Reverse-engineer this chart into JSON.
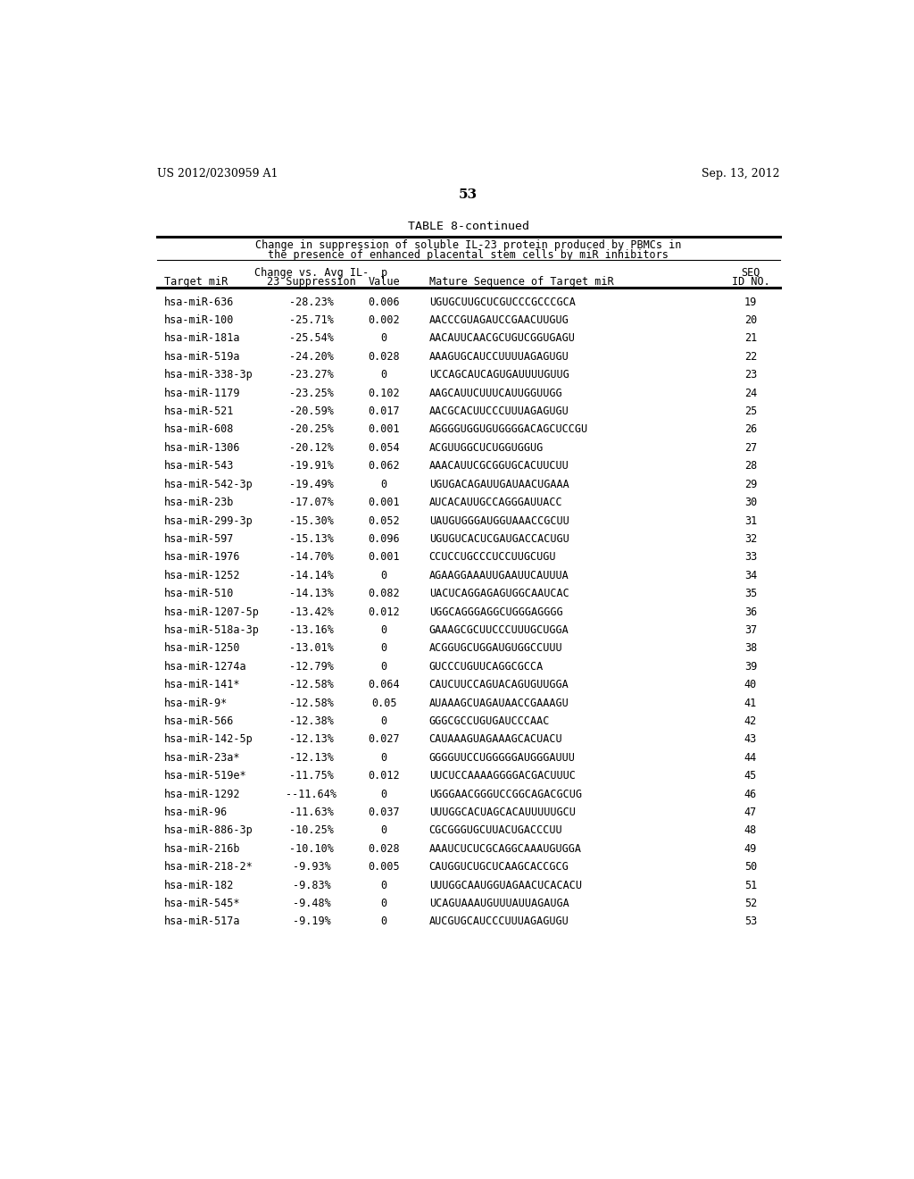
{
  "header_left": "US 2012/0230959 A1",
  "header_right": "Sep. 13, 2012",
  "page_number": "53",
  "table_title": "TABLE 8-continued",
  "table_subtitle1": "Change in suppression of soluble IL-23 protein produced by PBMCs in",
  "table_subtitle2": "the presence of enhanced placental stem cells by miR inhibitors",
  "rows": [
    [
      "hsa-miR-636",
      "-28.23%",
      "0.006",
      "UGUGCUUGCUCGUCCCGCCCGCA",
      "19"
    ],
    [
      "hsa-miR-100",
      "-25.71%",
      "0.002",
      "AACCCGUAGAUCCGAACUUGUG",
      "20"
    ],
    [
      "hsa-miR-181a",
      "-25.54%",
      "0",
      "AACAUUCAACGCUGUCGGUGAGU",
      "21"
    ],
    [
      "hsa-miR-519a",
      "-24.20%",
      "0.028",
      "AAAGUGCAUCCUUUUAGAGUGU",
      "22"
    ],
    [
      "hsa-miR-338-3p",
      "-23.27%",
      "0",
      "UCCAGCAUCAGUGAUUUUGUUG",
      "23"
    ],
    [
      "hsa-miR-1179",
      "-23.25%",
      "0.102",
      "AAGCAUUCUUUCAUUGGUUGG",
      "24"
    ],
    [
      "hsa-miR-521",
      "-20.59%",
      "0.017",
      "AACGCACUUCCCUUUAGAGUGU",
      "25"
    ],
    [
      "hsa-miR-608",
      "-20.25%",
      "0.001",
      "AGGGGUGGUGUGGGGACAGCUCCGU",
      "26"
    ],
    [
      "hsa-miR-1306",
      "-20.12%",
      "0.054",
      "ACGUUGGCUCUGGUGGUG",
      "27"
    ],
    [
      "hsa-miR-543",
      "-19.91%",
      "0.062",
      "AAACAUUCGCGGUGCACUUCUU",
      "28"
    ],
    [
      "hsa-miR-542-3p",
      "-19.49%",
      "0",
      "UGUGACAGAUUGAUAACUGAAA",
      "29"
    ],
    [
      "hsa-miR-23b",
      "-17.07%",
      "0.001",
      "AUCACAUUGCCAGGGAUUACC",
      "30"
    ],
    [
      "hsa-miR-299-3p",
      "-15.30%",
      "0.052",
      "UAUGUGGGAUGGUAAACCGCUU",
      "31"
    ],
    [
      "hsa-miR-597",
      "-15.13%",
      "0.096",
      "UGUGUCACUCGAUGACCACUGU",
      "32"
    ],
    [
      "hsa-miR-1976",
      "-14.70%",
      "0.001",
      "CCUCCUGCCCUCCUUGCUGU",
      "33"
    ],
    [
      "hsa-miR-1252",
      "-14.14%",
      "0",
      "AGAAGGAAAUUGAAUUCAUUUA",
      "34"
    ],
    [
      "hsa-miR-510",
      "-14.13%",
      "0.082",
      "UACUCAGGAGAGUGGCAAUCAC",
      "35"
    ],
    [
      "hsa-miR-1207-5p",
      "-13.42%",
      "0.012",
      "UGGCAGGGAGGCUGGGAGGGG",
      "36"
    ],
    [
      "hsa-miR-518a-3p",
      "-13.16%",
      "0",
      "GAAAGCGCUUCCCUUUGCUGGA",
      "37"
    ],
    [
      "hsa-miR-1250",
      "-13.01%",
      "0",
      "ACGGUGCUGGAUGUGGCCUUU",
      "38"
    ],
    [
      "hsa-miR-1274a",
      "-12.79%",
      "0",
      "GUCCCUGUUCAGGCGCCA",
      "39"
    ],
    [
      "hsa-miR-141*",
      "-12.58%",
      "0.064",
      "CAUCUUCCAGUACAGUGUUGGA",
      "40"
    ],
    [
      "hsa-miR-9*",
      "-12.58%",
      "0.05",
      "AUAAAGCUAGAUAACCGAAAGU",
      "41"
    ],
    [
      "hsa-miR-566",
      "-12.38%",
      "0",
      "GGGCGCCUGUGAUCCCAAC",
      "42"
    ],
    [
      "hsa-miR-142-5p",
      "-12.13%",
      "0.027",
      "CAUAAAGUAGAAAGCACUACU",
      "43"
    ],
    [
      "hsa-miR-23a*",
      "-12.13%",
      "0",
      "GGGGUUCCUGGGGGAUGGGAUUU",
      "44"
    ],
    [
      "hsa-miR-519e*",
      "-11.75%",
      "0.012",
      "UUCUCCAAAAGGGGACGACUUUC",
      "45"
    ],
    [
      "hsa-miR-1292",
      "--11.64%",
      "0",
      "UGGGAACGGGUCCGGCAGACGCUG",
      "46"
    ],
    [
      "hsa-miR-96",
      "-11.63%",
      "0.037",
      "UUUGGCACUAGCACAUUUUUGCU",
      "47"
    ],
    [
      "hsa-miR-886-3p",
      "-10.25%",
      "0",
      "CGCGGGUGCUUACUGACCCUU",
      "48"
    ],
    [
      "hsa-miR-216b",
      "-10.10%",
      "0.028",
      "AAAUCUCUCGCAGGCAAAUGUGGA",
      "49"
    ],
    [
      "hsa-miR-218-2*",
      "-9.93%",
      "0.005",
      "CAUGGUCUGCUCAAGCACCGCG",
      "50"
    ],
    [
      "hsa-miR-182",
      "-9.83%",
      "0",
      "UUUGGCAAUGGUAGAACUCACACU",
      "51"
    ],
    [
      "hsa-miR-545*",
      "-9.48%",
      "0",
      "UCAGUAAAUGUUUAUUAGAUGA",
      "52"
    ],
    [
      "hsa-miR-517a",
      "-9.19%",
      "0",
      "AUCGUGCAUCCCUUUAGAGUGU",
      "53"
    ]
  ]
}
